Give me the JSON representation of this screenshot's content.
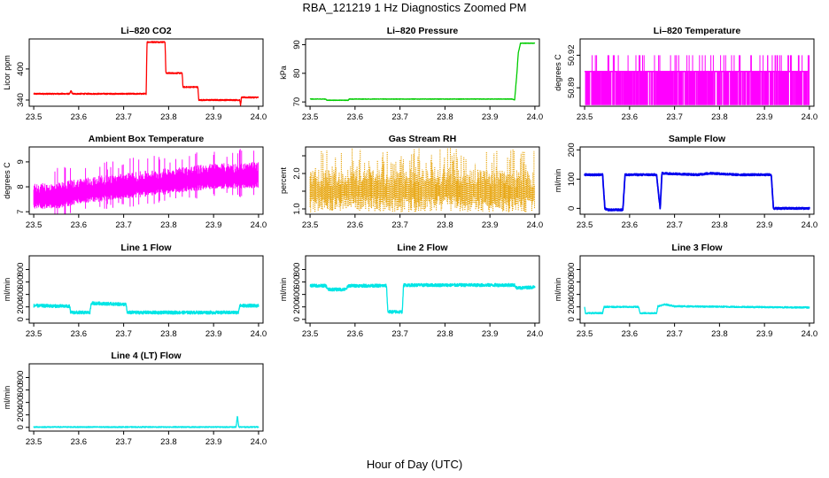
{
  "title": "RBA_121219  1 Hz Diagnostics Zoomed PM",
  "xlabel": "Hour of Day (UTC)",
  "chart_data": [
    {
      "type": "line",
      "id": "co2",
      "title": "Li–820 CO2",
      "ylabel": "Licor ppm",
      "color": "#ff0000",
      "xlim": [
        23.49,
        24.01
      ],
      "xticks": [
        23.5,
        23.6,
        23.7,
        23.8,
        23.9,
        24.0
      ],
      "ylim": [
        328,
        458
      ],
      "yticks": [
        340,
        400
      ],
      "series": [
        {
          "values": [
            [
              23.5,
              352
            ],
            [
              23.58,
              352
            ],
            [
              23.583,
              358
            ],
            [
              23.586,
              352
            ],
            [
              23.75,
              352
            ],
            [
              23.752,
              452
            ],
            [
              23.792,
              452
            ],
            [
              23.794,
              392
            ],
            [
              23.83,
              392
            ],
            [
              23.832,
              365
            ],
            [
              23.865,
              365
            ],
            [
              23.867,
              340
            ],
            [
              23.958,
              340
            ],
            [
              23.96,
              330
            ],
            [
              23.962,
              345
            ],
            [
              24.0,
              345
            ]
          ]
        }
      ]
    },
    {
      "type": "line",
      "id": "pressure",
      "title": "Li–820 Pressure",
      "ylabel": "kPa",
      "color": "#00cc00",
      "xlim": [
        23.49,
        24.01
      ],
      "xticks": [
        23.5,
        23.6,
        23.7,
        23.8,
        23.9,
        24.0
      ],
      "ylim": [
        68.5,
        92
      ],
      "yticks": [
        70,
        80,
        90
      ],
      "series": [
        {
          "values": [
            [
              23.5,
              71.0
            ],
            [
              23.535,
              71.0
            ],
            [
              23.537,
              70.6
            ],
            [
              23.585,
              70.6
            ],
            [
              23.587,
              71.0
            ],
            [
              23.95,
              71.0
            ],
            [
              23.955,
              70.7
            ],
            [
              23.96,
              80
            ],
            [
              23.963,
              87
            ],
            [
              23.968,
              90.5
            ],
            [
              24.0,
              90.5
            ]
          ]
        }
      ]
    },
    {
      "type": "line",
      "id": "licor-temp",
      "title": "Li–820 Temperature",
      "ylabel": "degrees C",
      "color": "#ff00ff",
      "xlim": [
        23.49,
        24.01
      ],
      "xticks": [
        23.5,
        23.6,
        23.7,
        23.8,
        23.9,
        24.0
      ],
      "ylim": [
        50.873,
        50.935
      ],
      "yticks": [
        50.89,
        50.92
      ],
      "yticklabels": [
        "50.89",
        "50.92"
      ],
      "levels": [
        50.874,
        50.905,
        50.92
      ],
      "series": [
        {
          "values": [
            [
              23.5,
              50.905
            ],
            [
              24.0,
              50.905
            ]
          ]
        }
      ]
    },
    {
      "type": "line",
      "id": "ambient-temp",
      "title": "Ambient Box Temperature",
      "ylabel": "degrees C",
      "color": "#ff00ff",
      "xlim": [
        23.49,
        24.01
      ],
      "xticks": [
        23.5,
        23.6,
        23.7,
        23.8,
        23.9,
        24.0
      ],
      "ylim": [
        6.9,
        9.6
      ],
      "yticks": [
        7.0,
        8.0,
        9.0
      ],
      "series": [
        {
          "values": [
            [
              23.5,
              7.5
            ],
            [
              23.55,
              7.5
            ],
            [
              23.6,
              7.7
            ],
            [
              23.65,
              7.8
            ],
            [
              23.7,
              7.9
            ],
            [
              23.75,
              8.0
            ],
            [
              23.8,
              8.1
            ],
            [
              23.85,
              8.2
            ],
            [
              23.9,
              8.3
            ],
            [
              23.95,
              8.3
            ],
            [
              24.0,
              8.35
            ]
          ]
        }
      ]
    },
    {
      "type": "scatter",
      "id": "gas-rh",
      "title": "Gas Stream RH",
      "ylabel": "percent",
      "color": "#e6a000",
      "xlim": [
        23.49,
        24.01
      ],
      "xticks": [
        23.5,
        23.6,
        23.7,
        23.8,
        23.9,
        24.0
      ],
      "ylim": [
        0.85,
        2.75
      ],
      "yticks": [
        1.0,
        1.5,
        2.0,
        2.5
      ],
      "yticklabels": [
        "1.0",
        "",
        "2.0",
        ""
      ],
      "series": [
        {
          "values": [
            [
              23.5,
              1.5
            ],
            [
              23.6,
              1.55
            ],
            [
              23.7,
              1.5
            ],
            [
              23.8,
              1.55
            ],
            [
              23.9,
              1.5
            ],
            [
              24.0,
              1.5
            ]
          ]
        }
      ]
    },
    {
      "type": "line",
      "id": "sample-flow",
      "title": "Sample Flow",
      "ylabel": "ml/min",
      "color": "#0000ee",
      "xlim": [
        23.49,
        24.01
      ],
      "xticks": [
        23.5,
        23.6,
        23.7,
        23.8,
        23.9,
        24.0
      ],
      "ylim": [
        -20,
        210
      ],
      "yticks": [
        0,
        100,
        200
      ],
      "series": [
        {
          "values": [
            [
              23.5,
              115
            ],
            [
              23.54,
              115
            ],
            [
              23.545,
              0
            ],
            [
              23.55,
              -5
            ],
            [
              23.585,
              -5
            ],
            [
              23.59,
              115
            ],
            [
              23.66,
              115
            ],
            [
              23.665,
              40
            ],
            [
              23.668,
              0
            ],
            [
              23.672,
              120
            ],
            [
              23.75,
              115
            ],
            [
              23.78,
              120
            ],
            [
              23.84,
              115
            ],
            [
              23.915,
              115
            ],
            [
              23.92,
              0
            ],
            [
              24.0,
              0
            ]
          ]
        }
      ]
    },
    {
      "type": "line",
      "id": "line1-flow",
      "title": "Line 1 Flow",
      "ylabel": "ml/min",
      "color": "#00e5e5",
      "xlim": [
        23.49,
        24.01
      ],
      "xticks": [
        23.5,
        23.6,
        23.7,
        23.8,
        23.9,
        24.0
      ],
      "ylim": [
        -60,
        1020
      ],
      "yticks": [
        0,
        200,
        400,
        600,
        800
      ],
      "series": [
        {
          "values": [
            [
              23.5,
              220
            ],
            [
              23.58,
              210
            ],
            [
              23.582,
              110
            ],
            [
              23.625,
              110
            ],
            [
              23.628,
              260
            ],
            [
              23.705,
              240
            ],
            [
              23.708,
              110
            ],
            [
              23.955,
              110
            ],
            [
              23.958,
              220
            ],
            [
              24.0,
              220
            ]
          ]
        }
      ]
    },
    {
      "type": "line",
      "id": "line2-flow",
      "title": "Line 2 Flow",
      "ylabel": "ml/min",
      "color": "#00e5e5",
      "xlim": [
        23.49,
        24.01
      ],
      "xticks": [
        23.5,
        23.6,
        23.7,
        23.8,
        23.9,
        24.0
      ],
      "ylim": [
        -60,
        1020
      ],
      "yticks": [
        0,
        200,
        400,
        600,
        800
      ],
      "series": [
        {
          "values": [
            [
              23.5,
              540
            ],
            [
              23.535,
              540
            ],
            [
              23.54,
              480
            ],
            [
              23.58,
              480
            ],
            [
              23.585,
              540
            ],
            [
              23.67,
              540
            ],
            [
              23.673,
              120
            ],
            [
              23.705,
              120
            ],
            [
              23.708,
              550
            ],
            [
              23.955,
              550
            ],
            [
              23.96,
              500
            ],
            [
              24.0,
              520
            ]
          ]
        }
      ]
    },
    {
      "type": "line",
      "id": "line3-flow",
      "title": "Line 3 Flow",
      "ylabel": "ml/min",
      "color": "#00e5e5",
      "xlim": [
        23.49,
        24.01
      ],
      "xticks": [
        23.5,
        23.6,
        23.7,
        23.8,
        23.9,
        24.0
      ],
      "ylim": [
        -60,
        1020
      ],
      "yticks": [
        0,
        200,
        400,
        600,
        800
      ],
      "series": [
        {
          "values": [
            [
              23.5,
              190
            ],
            [
              23.502,
              100
            ],
            [
              23.54,
              100
            ],
            [
              23.543,
              200
            ],
            [
              23.62,
              200
            ],
            [
              23.623,
              100
            ],
            [
              23.66,
              100
            ],
            [
              23.663,
              210
            ],
            [
              23.68,
              240
            ],
            [
              23.7,
              210
            ],
            [
              24.0,
              190
            ]
          ]
        }
      ]
    },
    {
      "type": "line",
      "id": "line4-flow",
      "title": "Line 4 (LT) Flow",
      "ylabel": "ml/min",
      "color": "#00e5e5",
      "xlim": [
        23.49,
        24.01
      ],
      "xticks": [
        23.5,
        23.6,
        23.7,
        23.8,
        23.9,
        24.0
      ],
      "ylim": [
        -60,
        1020
      ],
      "yticks": [
        0,
        200,
        400,
        600,
        800
      ],
      "series": [
        {
          "values": [
            [
              23.5,
              5
            ],
            [
              23.95,
              5
            ],
            [
              23.953,
              180
            ],
            [
              23.956,
              5
            ],
            [
              24.0,
              5
            ]
          ]
        }
      ]
    }
  ]
}
